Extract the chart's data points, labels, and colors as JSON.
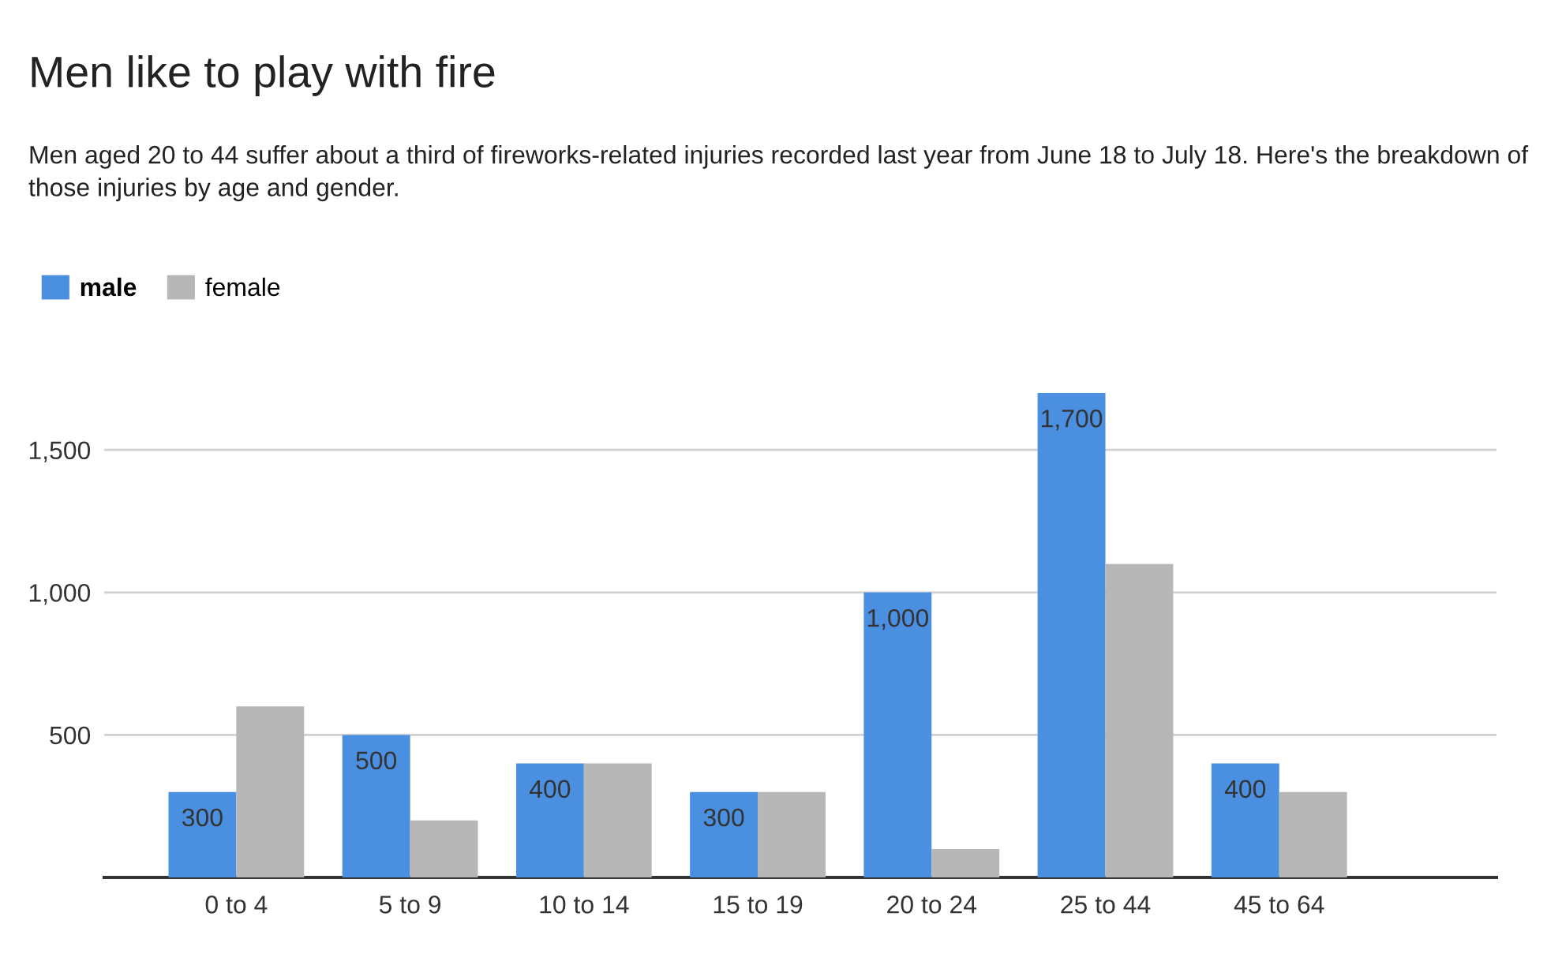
{
  "chart_data": {
    "type": "bar",
    "title": "Men like to play with fire",
    "subtitle": "Men aged 20 to 44 suffer about a third of fireworks-related injuries recorded last year from June 18 to July 18. Here's the breakdown of those injuries by age and gender.",
    "categories": [
      "0 to 4",
      "5 to 9",
      "10 to 14",
      "15 to 19",
      "20 to 24",
      "25 to 44",
      "45 to 64"
    ],
    "series": [
      {
        "name": "male",
        "color": "#4a8fe0",
        "values": [
          300,
          500,
          400,
          300,
          1000,
          1700,
          400
        ],
        "value_labels": [
          "300",
          "500",
          "400",
          "300",
          "1,000",
          "1,700",
          "400"
        ]
      },
      {
        "name": "female",
        "color": "#b7b7b7",
        "values": [
          600,
          200,
          400,
          300,
          100,
          1100,
          300
        ]
      }
    ],
    "ylim": [
      0,
      1700
    ],
    "yticks": [
      500,
      {
        "value": 1000,
        "label": "1,000"
      },
      {
        "value": 1500,
        "label": "1,500"
      }
    ],
    "grid": "y",
    "legend": "top left"
  }
}
